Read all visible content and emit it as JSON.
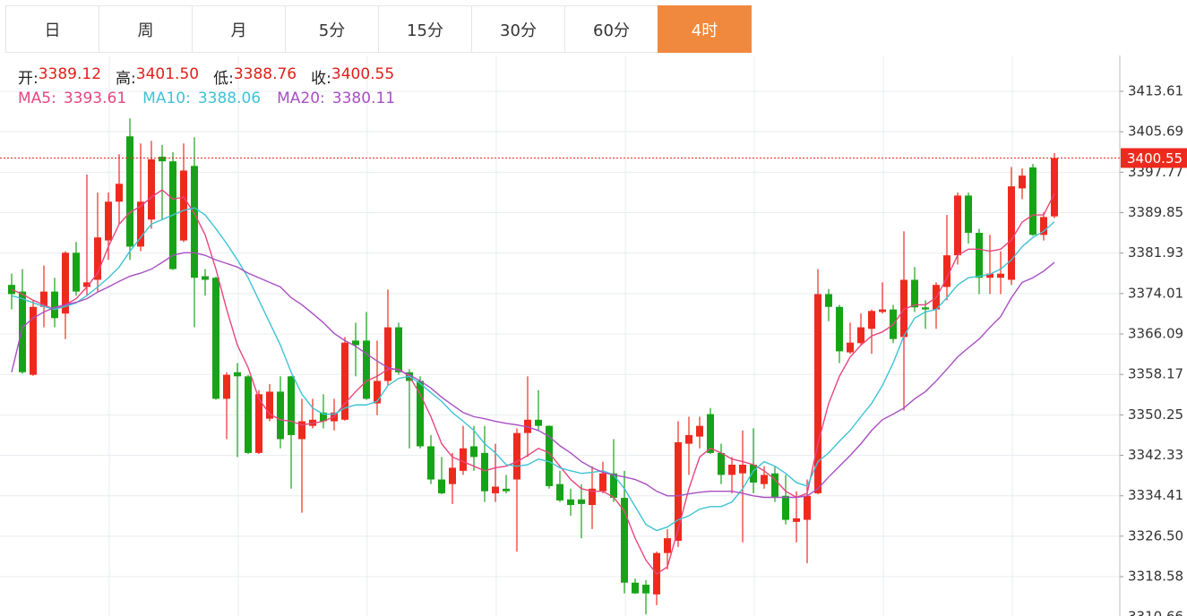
{
  "tabs": [
    "日",
    "周",
    "月",
    "5分",
    "15分",
    "30分",
    "60分",
    "4时"
  ],
  "active_tab": 7,
  "chart_data": {
    "type": "candlestick",
    "info": [
      {
        "label": "开:",
        "value": "3389.12"
      },
      {
        "label": "高:",
        "value": "3401.50"
      },
      {
        "label": "低:",
        "value": "3388.76"
      },
      {
        "label": "收:",
        "value": "3400.55"
      }
    ],
    "up_color": "#ee2a1f",
    "down_color": "#17a317",
    "open": [
      3375.7,
      3374.4,
      3358.1,
      3371.4,
      3374.4,
      3370.1,
      3382.0,
      3375.3,
      3376.7,
      3384.4,
      3392.0,
      3404.8,
      3383.2,
      3388.5,
      3400.8,
      3399.9,
      3384.4,
      3399.0,
      3377.4,
      3377.1,
      3353.4,
      3358.6,
      3357.8,
      3342.8,
      3349.5,
      3354.8,
      3357.8,
      3345.5,
      3348.1,
      3350.7,
      3349.0,
      3349.3,
      3364.8,
      3364.8,
      3352.5,
      3356.9,
      3367.4,
      3358.6,
      3356.9,
      3344.1,
      3337.6,
      3336.7,
      3339.3,
      3344.1,
      3342.8,
      3334.9,
      3335.8,
      3337.6,
      3346.7,
      3349.3,
      3348.1,
      3336.7,
      3333.7,
      3333.7,
      3332.6,
      3335.3,
      3338.8,
      3334.0,
      3317.4,
      3317.0,
      3315.1,
      3323.2,
      3325.6,
      3344.6,
      3346.0,
      3350.4,
      3342.8,
      3338.5,
      3338.8,
      3340.5,
      3336.7,
      3338.8,
      3334.4,
      3329.3,
      3329.7,
      3334.9,
      3373.9,
      3371.4,
      3362.5,
      3364.3,
      3367.1,
      3370.4,
      3370.9,
      3365.5,
      3376.7,
      3371.3,
      3370.9,
      3375.3,
      3381.5,
      3393.2,
      3385.9,
      3377.1,
      3377.1,
      3376.7,
      3394.6,
      3398.7,
      3385.5,
      3389.12
    ],
    "high": [
      3377.9,
      3378.8,
      3372.7,
      3379.5,
      3377.1,
      3382.3,
      3384.1,
      3397.3,
      3393.8,
      3393.8,
      3401.3,
      3408.3,
      3403.4,
      3403.9,
      3403.1,
      3401.7,
      3403.4,
      3404.6,
      3378.8,
      3377.3,
      3358.6,
      3360.4,
      3358.1,
      3355.1,
      3356.3,
      3357.8,
      3357.9,
      3353.4,
      3353.4,
      3354.3,
      3353.4,
      3365.5,
      3368.3,
      3370.4,
      3364.8,
      3374.8,
      3368.3,
      3359.2,
      3357.8,
      3346.3,
      3342.0,
      3342.8,
      3348.1,
      3348.1,
      3348.1,
      3344.6,
      3338.5,
      3347.6,
      3357.8,
      3355.1,
      3348.2,
      3339.3,
      3335.8,
      3336.7,
      3340.2,
      3341.1,
      3345.5,
      3339.3,
      3318.2,
      3317.9,
      3323.5,
      3327.9,
      3349.0,
      3349.9,
      3349.9,
      3351.6,
      3344.6,
      3342.0,
      3347.2,
      3347.6,
      3340.2,
      3340.2,
      3338.5,
      3335.3,
      3337.6,
      3378.8,
      3374.9,
      3371.8,
      3368.3,
      3370.1,
      3370.9,
      3376.2,
      3371.8,
      3386.2,
      3379.2,
      3372.7,
      3376.2,
      3389.4,
      3393.8,
      3393.8,
      3386.7,
      3385.5,
      3382.3,
      3398.8,
      3398.5,
      3399.4,
      3389.9,
      3401.5
    ],
    "low": [
      3370.9,
      3358.3,
      3357.9,
      3367.4,
      3367.4,
      3365.1,
      3373.6,
      3373.6,
      3374.4,
      3380.6,
      3387.6,
      3380.6,
      3382.3,
      3386.7,
      3388.5,
      3378.6,
      3384.1,
      3367.4,
      3373.6,
      3353.2,
      3345.5,
      3342.0,
      3342.6,
      3342.6,
      3349.0,
      3343.7,
      3335.8,
      3331.1,
      3347.6,
      3347.6,
      3347.2,
      3349.1,
      3357.8,
      3353.2,
      3350.2,
      3356.0,
      3358.1,
      3343.7,
      3343.7,
      3336.7,
      3334.7,
      3332.8,
      3338.5,
      3339.3,
      3333.2,
      3333.2,
      3334.9,
      3323.5,
      3342.0,
      3347.2,
      3335.8,
      3333.2,
      3330.5,
      3326.1,
      3327.9,
      3334.9,
      3333.2,
      3315.3,
      3315.2,
      3311.2,
      3313.0,
      3320.0,
      3324.4,
      3338.5,
      3343.7,
      3342.6,
      3336.7,
      3334.9,
      3325.3,
      3334.9,
      3335.8,
      3333.2,
      3328.8,
      3325.3,
      3321.2,
      3334.7,
      3368.6,
      3360.4,
      3362.2,
      3363.9,
      3362.2,
      3370.1,
      3364.3,
      3351.1,
      3370.4,
      3367.1,
      3367.1,
      3372.7,
      3379.7,
      3383.8,
      3373.9,
      3373.9,
      3373.9,
      3375.7,
      3392.5,
      3385.3,
      3384.4,
      3388.76
    ],
    "close": [
      3373.9,
      3358.6,
      3371.4,
      3374.4,
      3369.2,
      3382.0,
      3374.4,
      3376.2,
      3385.0,
      3392.0,
      3395.5,
      3383.2,
      3392.0,
      3400.3,
      3399.9,
      3378.8,
      3398.1,
      3377.1,
      3376.7,
      3353.4,
      3358.1,
      3357.8,
      3342.8,
      3354.3,
      3354.8,
      3345.5,
      3346.3,
      3349.0,
      3349.3,
      3349.0,
      3350.7,
      3364.4,
      3363.9,
      3353.4,
      3356.9,
      3367.4,
      3358.6,
      3356.9,
      3344.1,
      3337.6,
      3334.9,
      3339.9,
      3343.7,
      3342.0,
      3335.3,
      3336.2,
      3335.3,
      3346.7,
      3349.3,
      3348.1,
      3336.3,
      3333.5,
      3332.6,
      3332.8,
      3335.8,
      3338.8,
      3334.0,
      3317.4,
      3315.3,
      3315.3,
      3323.2,
      3326.1,
      3344.9,
      3346.3,
      3348.1,
      3342.8,
      3338.5,
      3340.5,
      3340.5,
      3337.0,
      3338.5,
      3334.0,
      3329.7,
      3330.0,
      3334.4,
      3373.9,
      3371.4,
      3362.7,
      3364.4,
      3367.4,
      3370.6,
      3370.9,
      3365.1,
      3376.7,
      3371.3,
      3370.9,
      3375.7,
      3381.5,
      3393.2,
      3385.9,
      3377.1,
      3377.9,
      3377.9,
      3395.0,
      3397.1,
      3385.5,
      3389.0,
      3400.55
    ],
    "series": [
      {
        "name": "MA5:",
        "color": "#e8457e",
        "current": "3393.61",
        "values": [
          3374.8,
          3373.9,
          3372.7,
          3371.8,
          3370.9,
          3371.8,
          3373.0,
          3375.3,
          3378.0,
          3383.2,
          3387.6,
          3389.9,
          3391.1,
          3392.9,
          3394.3,
          3392.5,
          3392.9,
          3389.7,
          3385.5,
          3378.8,
          3370.9,
          3363.9,
          3359.5,
          3353.4,
          3350.4,
          3349.3,
          3349.0,
          3348.3,
          3348.6,
          3349.0,
          3349.9,
          3352.5,
          3354.8,
          3356.9,
          3357.8,
          3359.2,
          3359.2,
          3357.8,
          3354.3,
          3349.9,
          3344.6,
          3342.0,
          3341.1,
          3340.2,
          3339.3,
          3339.9,
          3340.2,
          3341.1,
          3342.3,
          3343.7,
          3342.8,
          3340.2,
          3337.6,
          3335.8,
          3335.3,
          3335.3,
          3334.1,
          3331.4,
          3326.1,
          3321.8,
          3319.1,
          3320.5,
          3327.9,
          3335.8,
          3342.0,
          3343.7,
          3342.8,
          3341.6,
          3341.1,
          3340.5,
          3339.3,
          3337.6,
          3335.3,
          3334.1,
          3334.9,
          3344.6,
          3352.5,
          3357.8,
          3361.6,
          3363.9,
          3365.7,
          3366.5,
          3367.9,
          3370.9,
          3371.8,
          3371.8,
          3373.2,
          3377.1,
          3381.5,
          3382.7,
          3382.7,
          3382.3,
          3382.7,
          3384.5,
          3388.0,
          3389.4,
          3389.4,
          3393.61
        ]
      },
      {
        "name": "MA10:",
        "color": "#3ec3d5",
        "current": "3388.06",
        "values": [
          3373.6,
          3373.0,
          3372.2,
          3371.5,
          3370.9,
          3371.5,
          3372.2,
          3373.6,
          3375.3,
          3377.1,
          3379.2,
          3382.3,
          3385.0,
          3387.6,
          3388.5,
          3389.4,
          3390.3,
          3390.8,
          3389.4,
          3386.7,
          3383.8,
          3380.6,
          3377.1,
          3372.7,
          3368.3,
          3363.9,
          3358.6,
          3354.3,
          3351.6,
          3350.4,
          3350.4,
          3351.6,
          3352.2,
          3352.2,
          3352.9,
          3356.0,
          3357.4,
          3357.8,
          3356.4,
          3354.6,
          3352.9,
          3350.7,
          3349.0,
          3347.2,
          3344.6,
          3342.8,
          3340.5,
          3340.2,
          3340.5,
          3341.6,
          3341.1,
          3339.9,
          3339.3,
          3338.8,
          3339.0,
          3339.3,
          3338.5,
          3335.8,
          3332.3,
          3328.8,
          3327.6,
          3328.3,
          3329.7,
          3330.5,
          3331.8,
          3332.3,
          3332.3,
          3333.2,
          3335.8,
          3339.3,
          3341.1,
          3340.2,
          3338.8,
          3337.0,
          3336.3,
          3341.1,
          3342.8,
          3345.1,
          3347.2,
          3349.9,
          3352.5,
          3356.0,
          3360.4,
          3365.7,
          3369.2,
          3370.4,
          3370.9,
          3373.2,
          3375.7,
          3377.1,
          3377.4,
          3377.8,
          3378.8,
          3380.6,
          3383.2,
          3385.0,
          3386.2,
          3388.06
        ]
      },
      {
        "name": "MA20:",
        "color": "#a84fc2",
        "current": "3380.11",
        "values": [
          3358.6,
          3367.4,
          3369.2,
          3370.4,
          3371.3,
          3371.8,
          3372.3,
          3373.0,
          3374.3,
          3375.3,
          3376.4,
          3377.4,
          3378.0,
          3378.8,
          3380.1,
          3381.5,
          3382.0,
          3382.0,
          3381.5,
          3380.6,
          3379.9,
          3379.2,
          3378.0,
          3377.1,
          3376.2,
          3375.3,
          3373.2,
          3371.8,
          3370.1,
          3368.3,
          3366.2,
          3364.8,
          3363.7,
          3362.2,
          3360.8,
          3359.5,
          3359.0,
          3358.1,
          3356.9,
          3355.5,
          3353.7,
          3352.2,
          3350.7,
          3349.9,
          3349.5,
          3349.0,
          3348.6,
          3348.3,
          3347.9,
          3347.2,
          3346.0,
          3344.2,
          3342.8,
          3341.1,
          3339.9,
          3339.0,
          3338.5,
          3338.1,
          3337.6,
          3336.7,
          3335.3,
          3334.4,
          3334.4,
          3334.8,
          3335.1,
          3335.3,
          3335.3,
          3335.3,
          3334.9,
          3334.4,
          3334.1,
          3334.1,
          3334.1,
          3334.1,
          3334.4,
          3335.8,
          3338.1,
          3340.2,
          3342.3,
          3344.6,
          3347.2,
          3349.3,
          3350.4,
          3351.6,
          3353.4,
          3354.8,
          3356.9,
          3359.2,
          3361.6,
          3363.4,
          3365.1,
          3367.4,
          3369.5,
          3373.2,
          3376.2,
          3377.1,
          3378.4,
          3380.11
        ]
      }
    ],
    "ylim": [
      3310.87,
      3420.62
    ],
    "yticks": [
      3413.61,
      3405.69,
      3397.77,
      3389.85,
      3381.93,
      3374.01,
      3366.09,
      3358.17,
      3350.25,
      3342.33,
      3334.41,
      {
        "value": 3326.5,
        "label": "3326.50"
      },
      3318.58,
      3310.66
    ],
    "grid": true
  }
}
